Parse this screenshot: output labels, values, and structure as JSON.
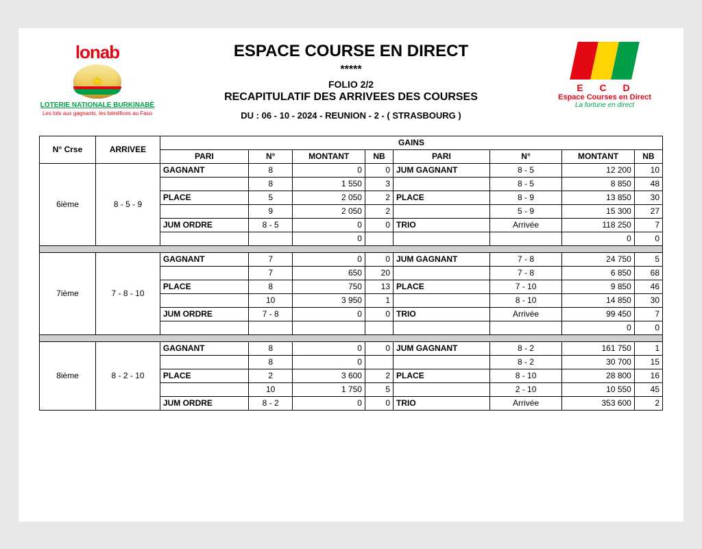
{
  "header": {
    "title": "ESPACE COURSE EN DIRECT",
    "stars": "*****",
    "folio": "FOLIO 2/2",
    "subtitle": "RECAPITULATIF DES ARRIVEES DES COURSES",
    "dateline": "DU : 06 - 10 - 2024 -  REUNION  - 2  -   ( STRASBOURG )",
    "logo_left": {
      "brand": "lonab",
      "sub": "LOTERIE NATIONALE BURKINABÈ",
      "tag": "Les lots aux gagnants, les bénéfices au Faso"
    },
    "logo_right": {
      "letters": "E C D",
      "sub": "Espace Courses en Direct",
      "tag": "La fortune en direct"
    }
  },
  "columns": {
    "crse": "N° Crse",
    "arrivee": "ARRIVEE",
    "gains": "GAINS",
    "pari": "PARI",
    "n": "N°",
    "montant": "MONTANT",
    "nb": "NB"
  },
  "races": [
    {
      "crse": "6ième",
      "arrivee": "8 - 5 - 9",
      "left_rows": [
        {
          "pari": "GAGNANT",
          "n": "8",
          "montant": "0",
          "nb": "0"
        },
        {
          "pari": "",
          "n": "8",
          "montant": "1 550",
          "nb": "3"
        },
        {
          "pari": "PLACE",
          "n": "5",
          "montant": "2 050",
          "nb": "2"
        },
        {
          "pari": "",
          "n": "9",
          "montant": "2 050",
          "nb": "2"
        },
        {
          "pari": "JUM ORDRE",
          "n": "8 - 5",
          "montant": "0",
          "nb": "0"
        },
        {
          "pari": "",
          "n": "",
          "montant": "0",
          "nb": ""
        }
      ],
      "right_rows": [
        {
          "pari": "JUM GAGNANT",
          "n": "8 - 5",
          "montant": "12 200",
          "nb": "10"
        },
        {
          "pari": "",
          "n": "8 - 5",
          "montant": "8 850",
          "nb": "48"
        },
        {
          "pari": "PLACE",
          "n": "8 - 9",
          "montant": "13 850",
          "nb": "30"
        },
        {
          "pari": "",
          "n": "5 - 9",
          "montant": "15 300",
          "nb": "27"
        },
        {
          "pari": "TRIO",
          "n": "Arrivée",
          "montant": "118 250",
          "nb": "7"
        },
        {
          "pari": "",
          "n": "",
          "montant": "0",
          "nb": "0"
        }
      ]
    },
    {
      "crse": "7ième",
      "arrivee": "7 - 8 - 10",
      "left_rows": [
        {
          "pari": "GAGNANT",
          "n": "7",
          "montant": "0",
          "nb": "0"
        },
        {
          "pari": "",
          "n": "7",
          "montant": "650",
          "nb": "20"
        },
        {
          "pari": "PLACE",
          "n": "8",
          "montant": "750",
          "nb": "13"
        },
        {
          "pari": "",
          "n": "10",
          "montant": "3 950",
          "nb": "1"
        },
        {
          "pari": "JUM ORDRE",
          "n": "7 - 8",
          "montant": "0",
          "nb": "0"
        },
        {
          "pari": "",
          "n": "",
          "montant": "",
          "nb": ""
        }
      ],
      "right_rows": [
        {
          "pari": "JUM GAGNANT",
          "n": "7 - 8",
          "montant": "24 750",
          "nb": "5"
        },
        {
          "pari": "",
          "n": "7 - 8",
          "montant": "6 850",
          "nb": "68"
        },
        {
          "pari": "PLACE",
          "n": "7 - 10",
          "montant": "9 850",
          "nb": "46"
        },
        {
          "pari": "",
          "n": "8 - 10",
          "montant": "14 850",
          "nb": "30"
        },
        {
          "pari": "TRIO",
          "n": "Arrivée",
          "montant": "99 450",
          "nb": "7"
        },
        {
          "pari": "",
          "n": "",
          "montant": "0",
          "nb": "0"
        }
      ]
    },
    {
      "crse": "8ième",
      "arrivee": "8 - 2 - 10",
      "left_rows": [
        {
          "pari": "GAGNANT",
          "n": "8",
          "montant": "0",
          "nb": "0"
        },
        {
          "pari": "",
          "n": "8",
          "montant": "0",
          "nb": ""
        },
        {
          "pari": "PLACE",
          "n": "2",
          "montant": "3 600",
          "nb": "2"
        },
        {
          "pari": "",
          "n": "10",
          "montant": "1 750",
          "nb": "5"
        },
        {
          "pari": "JUM ORDRE",
          "n": "8 - 2",
          "montant": "0",
          "nb": "0"
        }
      ],
      "right_rows": [
        {
          "pari": "JUM GAGNANT",
          "n": "8 - 2",
          "montant": "161 750",
          "nb": "1"
        },
        {
          "pari": "",
          "n": "8 - 2",
          "montant": "30 700",
          "nb": "15"
        },
        {
          "pari": "PLACE",
          "n": "8 - 10",
          "montant": "28 800",
          "nb": "16"
        },
        {
          "pari": "",
          "n": "2 - 10",
          "montant": "10 550",
          "nb": "45"
        },
        {
          "pari": "TRIO",
          "n": "Arrivée",
          "montant": "353 600",
          "nb": "2"
        }
      ]
    }
  ],
  "styling": {
    "page_bg": "#ffffff",
    "body_bg": "#e8e8e8",
    "border_color": "#000000",
    "sep_bg": "#d0d0d0",
    "brand_red": "#e30613",
    "brand_green": "#009e49",
    "brand_yellow": "#ffd400",
    "font": "Arial",
    "title_fontsize": 24,
    "table_fontsize": 12
  }
}
